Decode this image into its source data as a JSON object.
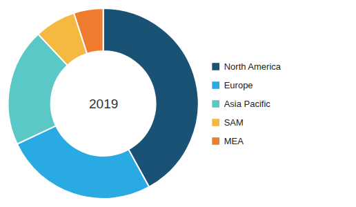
{
  "chart_data": {
    "type": "pie",
    "categories": [
      "North America",
      "Europe",
      "Asia Pacific",
      "SAM",
      "MEA"
    ],
    "values": [
      42,
      26,
      20,
      7,
      5
    ],
    "colors": [
      "#1a5276",
      "#29aae2",
      "#5bc8c8",
      "#f5b942",
      "#f07c30"
    ],
    "annotations": [
      "2019"
    ],
    "legend": "right"
  }
}
